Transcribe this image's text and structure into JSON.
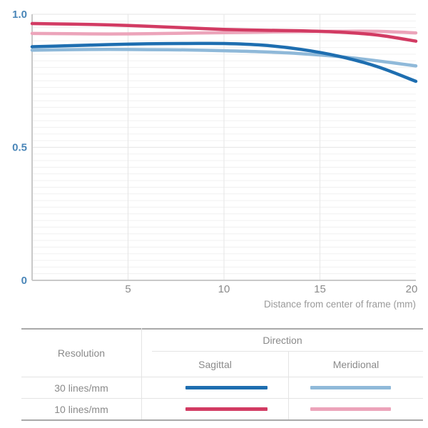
{
  "colors": {
    "axis_label_blue": "#4a86b8",
    "tick_gray": "#8a8a8a",
    "axis_title_gray": "#9a9a9a",
    "grid_minor": "#f0f0f0",
    "grid_major": "#e6e6e6",
    "axis_line": "#c9c9c9",
    "table_border": "#a9a9a9",
    "table_inner_line": "#e4e4e4",
    "table_text": "#8a8a8a"
  },
  "chart_data": {
    "type": "line",
    "title": "",
    "xlabel": "Distance from center of frame (mm)",
    "ylabel": "",
    "xlim": [
      0,
      20
    ],
    "ylim": [
      0,
      1.0
    ],
    "grid": true,
    "x_ticks": [
      5,
      10,
      15,
      20
    ],
    "y_ticks": [
      {
        "value": 1.0,
        "label": "1.0"
      },
      {
        "value": 0.5,
        "label": "0.5"
      },
      {
        "value": 0.0,
        "label": "0"
      }
    ],
    "x": [
      0,
      2,
      4,
      6,
      8,
      10,
      12,
      14,
      16,
      18,
      20
    ],
    "series": [
      {
        "name": "10 lines/mm Meridional",
        "color": "#eca4ba",
        "values": [
          0.928,
          0.927,
          0.926,
          0.927,
          0.929,
          0.931,
          0.933,
          0.935,
          0.936,
          0.936,
          0.93
        ]
      },
      {
        "name": "30 lines/mm Meridional",
        "color": "#8fb9d9",
        "values": [
          0.865,
          0.867,
          0.868,
          0.867,
          0.866,
          0.863,
          0.859,
          0.852,
          0.841,
          0.825,
          0.806
        ]
      },
      {
        "name": "10 lines/mm Sagittal",
        "color": "#d23b63",
        "values": [
          0.965,
          0.963,
          0.96,
          0.955,
          0.949,
          0.943,
          0.94,
          0.938,
          0.933,
          0.922,
          0.899
        ]
      },
      {
        "name": "30 lines/mm Sagittal",
        "color": "#1e6eb0",
        "values": [
          0.878,
          0.882,
          0.886,
          0.889,
          0.89,
          0.89,
          0.884,
          0.868,
          0.842,
          0.803,
          0.748
        ]
      }
    ]
  },
  "table": {
    "resolution_header": "Resolution",
    "direction_header": "Direction",
    "col_sagittal": "Sagittal",
    "col_meridional": "Meridional",
    "rows": [
      {
        "label": "30 lines/mm",
        "sagittal_series": "30 lines/mm Sagittal",
        "meridional_series": "30 lines/mm Meridional"
      },
      {
        "label": "10 lines/mm",
        "sagittal_series": "10 lines/mm Sagittal",
        "meridional_series": "10 lines/mm Meridional"
      }
    ]
  }
}
